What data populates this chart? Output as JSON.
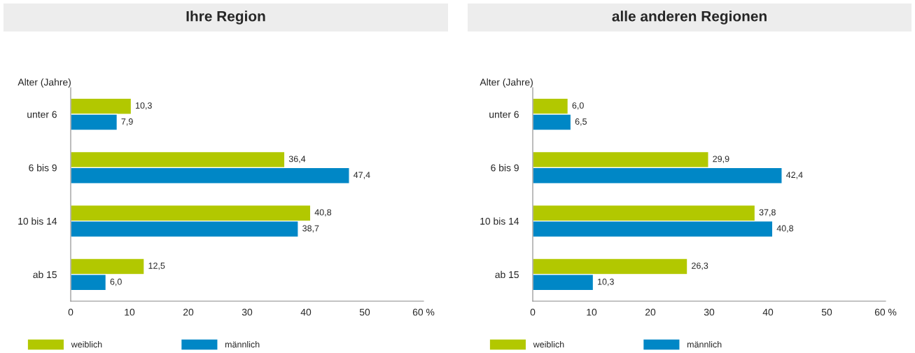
{
  "chart_data": [
    {
      "type": "bar",
      "orientation": "horizontal",
      "title": "Ihre Region",
      "ylabel": "Alter (Jahre)",
      "categories": [
        "unter 6",
        "6 bis 9",
        "10 bis 14",
        "ab 15"
      ],
      "xlim": [
        0,
        60
      ],
      "xticks": [
        0,
        10,
        20,
        30,
        40,
        50,
        {
          "value": 60,
          "label": "60 %"
        }
      ],
      "legend": "bottom",
      "grid": false,
      "series": [
        {
          "name": "weiblich",
          "color": "#b2c800",
          "values": [
            10.3,
            36.4,
            40.8,
            12.5
          ],
          "value_labels": [
            "10,3",
            "36,4",
            "40,8",
            "12,5"
          ]
        },
        {
          "name": "männlich",
          "color": "#0087c6",
          "values": [
            7.9,
            47.4,
            38.7,
            6.0
          ],
          "value_labels": [
            "7,9",
            "47,4",
            "38,7",
            "6,0"
          ]
        }
      ]
    },
    {
      "type": "bar",
      "orientation": "horizontal",
      "title": "alle anderen Regionen",
      "ylabel": "Alter (Jahre)",
      "categories": [
        "unter 6",
        "6 bis 9",
        "10 bis 14",
        "ab 15"
      ],
      "xlim": [
        0,
        60
      ],
      "xticks": [
        0,
        10,
        20,
        30,
        40,
        50,
        {
          "value": 60,
          "label": "60 %"
        }
      ],
      "legend": "bottom",
      "grid": false,
      "series": [
        {
          "name": "weiblich",
          "color": "#b2c800",
          "values": [
            6.0,
            29.9,
            37.8,
            26.3
          ],
          "value_labels": [
            "6,0",
            "29,9",
            "37,8",
            "26,3"
          ]
        },
        {
          "name": "männlich",
          "color": "#0087c6",
          "values": [
            6.5,
            42.4,
            40.8,
            10.3
          ],
          "value_labels": [
            "6,5",
            "42,4",
            "40,8",
            "10,3"
          ]
        }
      ]
    }
  ]
}
